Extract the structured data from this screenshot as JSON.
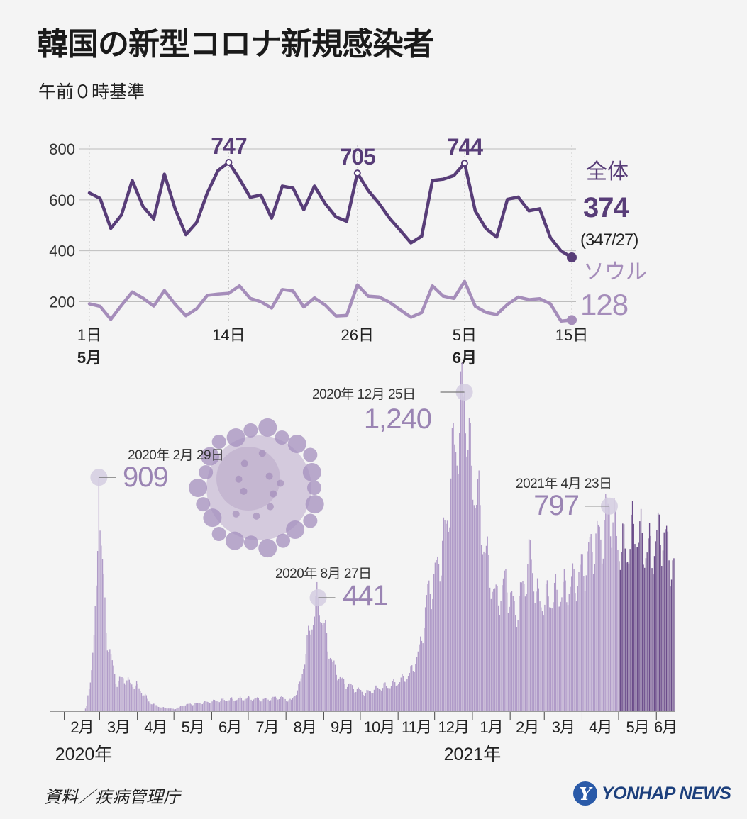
{
  "title": "韓国の新型コロナ新規感染者",
  "subtitle": "午前０時基準",
  "source": "資料／疾病管理庁",
  "logo": {
    "mark": "Y",
    "text": "YONHAP NEWS"
  },
  "colors": {
    "total": "#583d78",
    "seoul": "#a58dba",
    "bar": "#b09bc8",
    "bar_recent": "#6b4c8a",
    "marker": "#d4cce0"
  },
  "chart_data": [
    {
      "type": "line",
      "x_ticks": [
        {
          "day": 1,
          "label": "1日",
          "month": "5月"
        },
        {
          "day": 14,
          "label": "14日",
          "month": ""
        },
        {
          "day": 26,
          "label": "26日",
          "month": ""
        },
        {
          "day": 36,
          "label": "5日",
          "month": "6月"
        },
        {
          "day": 46,
          "label": "15日",
          "month": ""
        }
      ],
      "y_ticks": [
        200,
        400,
        600,
        800
      ],
      "ylim": [
        90,
        800
      ],
      "series": [
        {
          "name": "全体",
          "latest": "374",
          "latest_note": "(347/27)",
          "values": [
            627,
            606,
            488,
            541,
            676,
            574,
            525,
            701,
            564,
            463,
            511,
            627,
            715,
            747,
            682,
            610,
            619,
            528,
            654,
            646,
            561,
            654,
            585,
            533,
            516,
            705,
            637,
            587,
            528,
            480,
            431,
            457,
            676,
            681,
            695,
            744,
            556,
            487,
            454,
            602,
            611,
            557,
            565,
            452,
            399,
            374
          ]
        },
        {
          "name": "ソウル",
          "latest": "128",
          "latest_note": "",
          "values": [
            192,
            182,
            131,
            186,
            238,
            214,
            183,
            244,
            190,
            145,
            172,
            225,
            230,
            233,
            262,
            213,
            200,
            175,
            248,
            242,
            179,
            215,
            187,
            144,
            146,
            266,
            222,
            219,
            198,
            168,
            139,
            157,
            262,
            222,
            213,
            280,
            182,
            158,
            150,
            189,
            218,
            208,
            212,
            192,
            124,
            128
          ]
        }
      ],
      "peaks": [
        {
          "index": 13,
          "label": "747"
        },
        {
          "index": 25,
          "label": "705"
        },
        {
          "index": 35,
          "label": "744"
        }
      ]
    },
    {
      "type": "bar",
      "x_start": "2020-01-20",
      "x_end": "2021-06-15",
      "ylim": [
        0,
        1240
      ],
      "month_labels": [
        "2月",
        "3月",
        "4月",
        "5月",
        "6月",
        "7月",
        "8月",
        "9月",
        "10月",
        "11月",
        "12月",
        "1月",
        "2月",
        "3月",
        "4月",
        "5月",
        "6月"
      ],
      "year_labels": [
        "2020年",
        "2021年"
      ],
      "series_keypoints": [
        [
          "2020-01-20",
          1
        ],
        [
          "2020-02-17",
          1
        ],
        [
          "2020-02-19",
          18
        ],
        [
          "2020-02-21",
          95
        ],
        [
          "2020-02-23",
          170
        ],
        [
          "2020-02-25",
          280
        ],
        [
          "2020-02-27",
          440
        ],
        [
          "2020-02-29",
          909
        ],
        [
          "2020-03-02",
          620
        ],
        [
          "2020-03-04",
          480
        ],
        [
          "2020-03-06",
          320
        ],
        [
          "2020-03-10",
          200
        ],
        [
          "2020-03-15",
          110
        ],
        [
          "2020-03-20",
          130
        ],
        [
          "2020-03-25",
          110
        ],
        [
          "2020-03-31",
          100
        ],
        [
          "2020-04-05",
          70
        ],
        [
          "2020-04-12",
          30
        ],
        [
          "2020-04-20",
          15
        ],
        [
          "2020-05-01",
          8
        ],
        [
          "2020-05-10",
          25
        ],
        [
          "2020-05-20",
          30
        ],
        [
          "2020-06-01",
          38
        ],
        [
          "2020-06-15",
          45
        ],
        [
          "2020-07-01",
          50
        ],
        [
          "2020-07-15",
          45
        ],
        [
          "2020-07-26",
          55
        ],
        [
          "2020-08-05",
          40
        ],
        [
          "2020-08-12",
          100
        ],
        [
          "2020-08-18",
          260
        ],
        [
          "2020-08-22",
          350
        ],
        [
          "2020-08-27",
          441
        ],
        [
          "2020-09-01",
          320
        ],
        [
          "2020-09-08",
          180
        ],
        [
          "2020-09-15",
          120
        ],
        [
          "2020-09-25",
          90
        ],
        [
          "2020-10-05",
          70
        ],
        [
          "2020-10-15",
          90
        ],
        [
          "2020-10-25",
          100
        ],
        [
          "2020-11-01",
          115
        ],
        [
          "2020-11-10",
          140
        ],
        [
          "2020-11-18",
          230
        ],
        [
          "2020-11-25",
          450
        ],
        [
          "2020-12-01",
          520
        ],
        [
          "2020-12-10",
          700
        ],
        [
          "2020-12-16",
          1000
        ],
        [
          "2020-12-20",
          1080
        ],
        [
          "2020-12-25",
          1240
        ],
        [
          "2020-12-30",
          950
        ],
        [
          "2021-01-05",
          820
        ],
        [
          "2021-01-12",
          600
        ],
        [
          "2021-01-20",
          430
        ],
        [
          "2021-01-28",
          500
        ],
        [
          "2021-02-05",
          380
        ],
        [
          "2021-02-10",
          460
        ],
        [
          "2021-02-17",
          600
        ],
        [
          "2021-02-24",
          420
        ],
        [
          "2021-03-05",
          440
        ],
        [
          "2021-03-15",
          460
        ],
        [
          "2021-03-25",
          500
        ],
        [
          "2021-04-01",
          550
        ],
        [
          "2021-04-10",
          650
        ],
        [
          "2021-04-17",
          680
        ],
        [
          "2021-04-23",
          797
        ],
        [
          "2021-04-30",
          650
        ],
        [
          "2021-05-07",
          620
        ],
        [
          "2021-05-14",
          720
        ],
        [
          "2021-05-21",
          640
        ],
        [
          "2021-05-28",
          620
        ],
        [
          "2021-06-04",
          700
        ],
        [
          "2021-06-09",
          650
        ],
        [
          "2021-06-15",
          540
        ]
      ],
      "annotations": [
        {
          "date": "2020-02-29",
          "value": 909,
          "date_label": "2020年 2月 29日",
          "value_label": "909"
        },
        {
          "date": "2020-08-27",
          "value": 441,
          "date_label": "2020年 8月 27日",
          "value_label": "441"
        },
        {
          "date": "2020-12-25",
          "value": 1240,
          "date_label": "2020年 12月 25日",
          "value_label": "1,240"
        },
        {
          "date": "2021-04-23",
          "value": 797,
          "date_label": "2021年 4月 23日",
          "value_label": "797"
        }
      ]
    }
  ]
}
